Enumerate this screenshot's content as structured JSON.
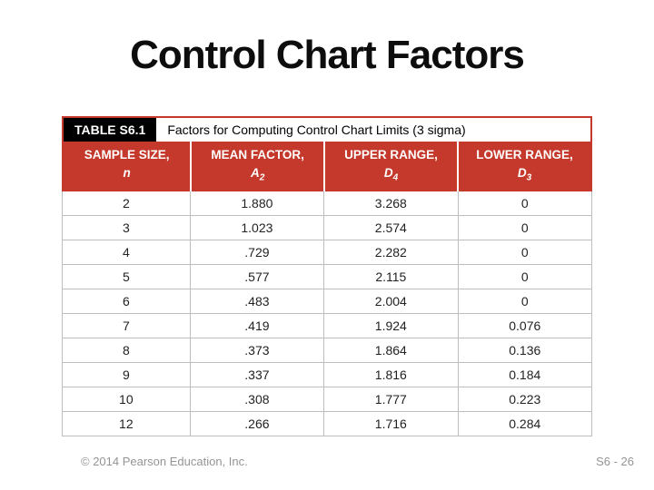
{
  "slide": {
    "title": "Control Chart Factors",
    "footer_left": "© 2014 Pearson Education, Inc.",
    "footer_right": "S6 - 26"
  },
  "table": {
    "label": "TABLE S6.1",
    "caption": "Factors for Computing Control Chart Limits (3 sigma)",
    "columns": [
      {
        "name": "SAMPLE SIZE,",
        "symbol": "n",
        "subscript": ""
      },
      {
        "name": "MEAN FACTOR,",
        "symbol": "A",
        "subscript": "2"
      },
      {
        "name": "UPPER RANGE,",
        "symbol": "D",
        "subscript": "4"
      },
      {
        "name": "LOWER RANGE,",
        "symbol": "D",
        "subscript": "3"
      }
    ],
    "rows": [
      [
        "2",
        "1.880",
        "3.268",
        "0"
      ],
      [
        "3",
        "1.023",
        "2.574",
        "0"
      ],
      [
        "4",
        ".729",
        "2.282",
        "0"
      ],
      [
        "5",
        ".577",
        "2.115",
        "0"
      ],
      [
        "6",
        ".483",
        "2.004",
        "0"
      ],
      [
        "7",
        ".419",
        "1.924",
        "0.076"
      ],
      [
        "8",
        ".373",
        "1.864",
        "0.136"
      ],
      [
        "9",
        ".337",
        "1.816",
        "0.184"
      ],
      [
        "10",
        ".308",
        "1.777",
        "0.223"
      ],
      [
        "12",
        ".266",
        "1.716",
        "0.284"
      ]
    ]
  },
  "colors": {
    "header_red": "#C4392B",
    "grid_gray": "#BDBDBD",
    "footer_gray": "#949494",
    "label_black": "#000000"
  }
}
